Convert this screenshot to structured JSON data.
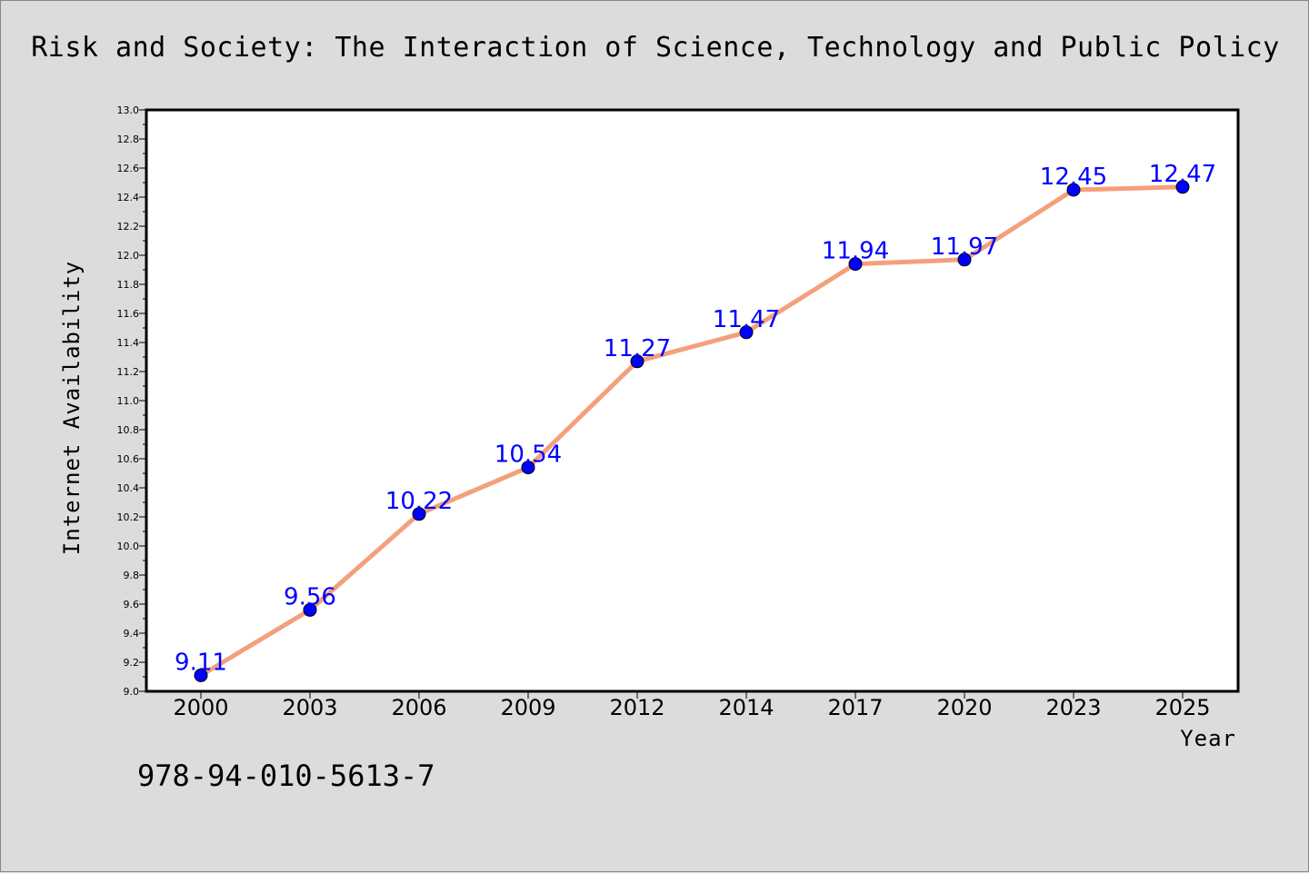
{
  "page": {
    "title": "Risk and Society: The Interaction of Science, Technology and Public Policy",
    "isbn": "978-94-010-5613-7"
  },
  "chart_data": {
    "type": "line",
    "categories": [
      "2000",
      "2003",
      "2006",
      "2009",
      "2012",
      "2014",
      "2017",
      "2020",
      "2023",
      "2025"
    ],
    "values": [
      9.11,
      9.56,
      10.22,
      10.54,
      11.27,
      11.47,
      11.94,
      11.97,
      12.45,
      12.47
    ],
    "data_labels": [
      "9.11",
      "9.56",
      "10.22",
      "10.54",
      "11.27",
      "11.47",
      "11.94",
      "11.97",
      "12.45",
      "12.47"
    ],
    "xlabel": "Year",
    "ylabel": "Internet Availability",
    "ylim": [
      9.0,
      13.0
    ],
    "y_ticks": [
      "9.0",
      "9.2",
      "9.4",
      "9.6",
      "9.8",
      "10.0",
      "10.2",
      "10.4",
      "10.6",
      "10.8",
      "11.0",
      "11.2",
      "11.4",
      "11.6",
      "11.8",
      "12.0",
      "12.2",
      "12.4",
      "12.6",
      "12.8",
      "13.0"
    ],
    "grid": false,
    "line_color": "#f4a07c",
    "marker_color": "#0000ff",
    "label_color": "#0000ff"
  }
}
